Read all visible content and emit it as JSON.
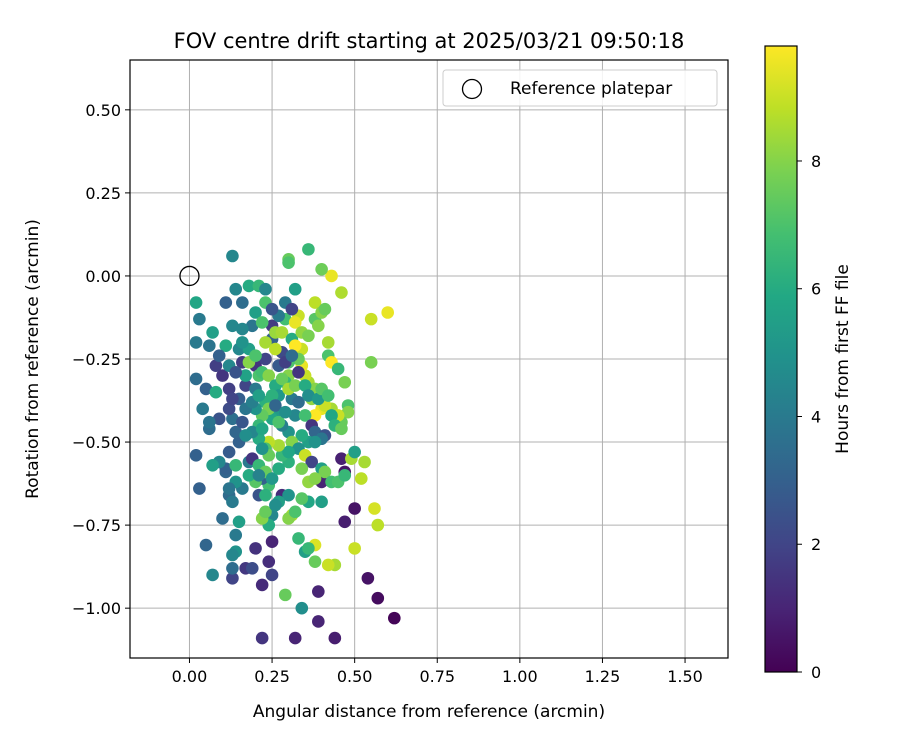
{
  "chart_data": {
    "type": "scatter",
    "title": "FOV centre drift starting at 2025/03/21 09:50:18",
    "xlabel": "Angular distance from reference (arcmin)",
    "ylabel": "Rotation from reference (arcmin)",
    "xlim": [
      -0.18,
      1.63
    ],
    "ylim": [
      -1.15,
      0.65
    ],
    "xticks": [
      "0.00",
      "0.25",
      "0.50",
      "0.75",
      "1.00",
      "1.25",
      "1.50"
    ],
    "yticks": [
      "0.50",
      "0.25",
      "0.00",
      "−0.25",
      "−0.50",
      "−0.75",
      "−1.00"
    ],
    "xtick_values": [
      0,
      0.25,
      0.5,
      0.75,
      1.0,
      1.25,
      1.5
    ],
    "ytick_values": [
      0.5,
      0.25,
      0,
      -0.25,
      -0.5,
      -0.75,
      -1.0
    ],
    "grid": true,
    "legend": {
      "placement": "top-right",
      "label": "Reference platepar",
      "marker": "open-circle"
    },
    "reference_point": {
      "x": 0.0,
      "y": 0.0
    },
    "colorbar": {
      "label": "Hours from first FF file",
      "min": 0,
      "max": 9.8,
      "ticks": [
        0,
        2,
        4,
        6,
        8
      ],
      "tick_labels": [
        "0",
        "2",
        "4",
        "6",
        "8"
      ],
      "colormap": "viridis"
    },
    "points": [
      [
        0.62,
        -1.03,
        0.1
      ],
      [
        0.57,
        -0.97,
        0.3
      ],
      [
        0.54,
        -0.91,
        0.5
      ],
      [
        0.44,
        -1.09,
        0.8
      ],
      [
        0.32,
        -1.09,
        1.0
      ],
      [
        0.22,
        -1.09,
        1.5
      ],
      [
        0.39,
        -1.04,
        1.0
      ],
      [
        0.39,
        -0.95,
        1.0
      ],
      [
        0.5,
        -0.7,
        0.5
      ],
      [
        0.47,
        -0.74,
        0.8
      ],
      [
        0.46,
        -0.55,
        0.9
      ],
      [
        0.47,
        -0.59,
        0.6
      ],
      [
        0.4,
        -0.62,
        1.0
      ],
      [
        0.28,
        -0.66,
        1.2
      ],
      [
        0.25,
        -0.8,
        1.0
      ],
      [
        0.2,
        -0.82,
        1.4
      ],
      [
        0.24,
        -0.86,
        1.3
      ],
      [
        0.22,
        -0.93,
        1.2
      ],
      [
        0.25,
        -0.9,
        2.0
      ],
      [
        0.17,
        -0.88,
        1.6
      ],
      [
        0.13,
        -0.91,
        2.0
      ],
      [
        0.19,
        -0.88,
        2.3
      ],
      [
        0.07,
        -0.9,
        4.5
      ],
      [
        0.05,
        -0.81,
        3.2
      ],
      [
        0.1,
        -0.73,
        3.5
      ],
      [
        0.03,
        -0.64,
        3.0
      ],
      [
        0.11,
        -0.59,
        3.2
      ],
      [
        0.12,
        -0.66,
        3.4
      ],
      [
        0.02,
        -0.54,
        3.0
      ],
      [
        0.06,
        -0.46,
        3.5
      ],
      [
        0.09,
        -0.43,
        2.5
      ],
      [
        0.06,
        -0.44,
        3.8
      ],
      [
        0.12,
        -0.53,
        2.8
      ],
      [
        0.15,
        -0.5,
        3.0
      ],
      [
        0.13,
        -0.43,
        3.6
      ],
      [
        0.14,
        -0.47,
        3.2
      ],
      [
        0.16,
        -0.44,
        2.6
      ],
      [
        0.12,
        -0.4,
        2.2
      ],
      [
        0.15,
        -0.37,
        2.9
      ],
      [
        0.17,
        -0.33,
        2.0
      ],
      [
        0.12,
        -0.34,
        1.8
      ],
      [
        0.1,
        -0.3,
        1.5
      ],
      [
        0.08,
        -0.27,
        1.8
      ],
      [
        0.05,
        -0.34,
        3.0
      ],
      [
        0.04,
        -0.4,
        4.0
      ],
      [
        0.02,
        -0.31,
        3.5
      ],
      [
        0.02,
        -0.2,
        4.0
      ],
      [
        0.06,
        -0.21,
        3.8
      ],
      [
        0.03,
        -0.13,
        4.0
      ],
      [
        0.02,
        -0.08,
        5.8
      ],
      [
        0.07,
        -0.17,
        5.5
      ],
      [
        0.11,
        -0.08,
        3.0
      ],
      [
        0.13,
        -0.15,
        4.5
      ],
      [
        0.14,
        -0.04,
        4.5
      ],
      [
        0.16,
        -0.08,
        3.5
      ],
      [
        0.13,
        0.06,
        4.5
      ],
      [
        0.18,
        -0.03,
        6.0
      ],
      [
        0.21,
        -0.03,
        6.5
      ],
      [
        0.23,
        -0.08,
        7.0
      ],
      [
        0.2,
        -0.11,
        5.5
      ],
      [
        0.19,
        -0.15,
        3.8
      ],
      [
        0.16,
        -0.16,
        4.5
      ],
      [
        0.15,
        -0.22,
        4.5
      ],
      [
        0.18,
        -0.22,
        5.5
      ],
      [
        0.16,
        -0.26,
        1.7
      ],
      [
        0.2,
        -0.27,
        1.5
      ],
      [
        0.23,
        -0.25,
        2.0
      ],
      [
        0.25,
        -0.19,
        3.0
      ],
      [
        0.25,
        -0.15,
        1.7
      ],
      [
        0.26,
        -0.17,
        8.3
      ],
      [
        0.28,
        -0.17,
        8.5
      ],
      [
        0.29,
        -0.13,
        6.8
      ],
      [
        0.28,
        -0.23,
        2.2
      ],
      [
        0.31,
        -0.19,
        6.0
      ],
      [
        0.33,
        -0.12,
        9.0
      ],
      [
        0.32,
        -0.14,
        9.5
      ],
      [
        0.34,
        -0.17,
        8.2
      ],
      [
        0.36,
        -0.18,
        7.8
      ],
      [
        0.38,
        -0.13,
        7.2
      ],
      [
        0.38,
        -0.08,
        8.8
      ],
      [
        0.4,
        -0.11,
        8.0
      ],
      [
        0.41,
        -0.1,
        7.5
      ],
      [
        0.43,
        0.0,
        9.5
      ],
      [
        0.4,
        0.02,
        7.6
      ],
      [
        0.36,
        0.08,
        6.5
      ],
      [
        0.3,
        0.05,
        7.5
      ],
      [
        0.3,
        0.04,
        7.0
      ],
      [
        0.32,
        -0.04,
        5.5
      ],
      [
        0.39,
        -0.15,
        8.0
      ],
      [
        0.42,
        -0.2,
        8.5
      ],
      [
        0.42,
        -0.24,
        7.0
      ],
      [
        0.43,
        -0.26,
        9.8
      ],
      [
        0.45,
        -0.28,
        6.5
      ],
      [
        0.47,
        -0.32,
        7.8
      ],
      [
        0.48,
        -0.39,
        7.0
      ],
      [
        0.46,
        -0.05,
        8.6
      ],
      [
        0.55,
        -0.13,
        9.0
      ],
      [
        0.6,
        -0.11,
        9.5
      ],
      [
        0.55,
        -0.26,
        7.8
      ],
      [
        0.48,
        -0.41,
        8.0
      ],
      [
        0.46,
        -0.44,
        7.5
      ],
      [
        0.43,
        -0.4,
        8.5
      ],
      [
        0.45,
        -0.42,
        9.0
      ],
      [
        0.44,
        -0.45,
        8.0
      ],
      [
        0.4,
        -0.4,
        9.5
      ],
      [
        0.41,
        -0.39,
        9.0
      ],
      [
        0.38,
        -0.42,
        9.8
      ],
      [
        0.37,
        -0.37,
        8.2
      ],
      [
        0.36,
        -0.32,
        8.5
      ],
      [
        0.38,
        -0.34,
        8.0
      ],
      [
        0.35,
        -0.3,
        9.0
      ],
      [
        0.34,
        -0.27,
        9.5
      ],
      [
        0.34,
        -0.22,
        9.0
      ],
      [
        0.32,
        -0.21,
        9.8
      ],
      [
        0.33,
        -0.25,
        7.5
      ],
      [
        0.3,
        -0.3,
        8.0
      ],
      [
        0.3,
        -0.26,
        7.0
      ],
      [
        0.29,
        -0.32,
        6.5
      ],
      [
        0.31,
        -0.37,
        4.0
      ],
      [
        0.33,
        -0.38,
        3.5
      ],
      [
        0.32,
        -0.42,
        4.5
      ],
      [
        0.35,
        -0.42,
        6.8
      ],
      [
        0.37,
        -0.45,
        1.5
      ],
      [
        0.38,
        -0.47,
        3.2
      ],
      [
        0.36,
        -0.5,
        5.5
      ],
      [
        0.34,
        -0.48,
        6.0
      ],
      [
        0.31,
        -0.52,
        7.0
      ],
      [
        0.3,
        -0.47,
        5.0
      ],
      [
        0.28,
        -0.45,
        4.2
      ],
      [
        0.26,
        -0.41,
        5.3
      ],
      [
        0.25,
        -0.43,
        5.8
      ],
      [
        0.23,
        -0.38,
        6.2
      ],
      [
        0.24,
        -0.4,
        7.8
      ],
      [
        0.22,
        -0.42,
        7.4
      ],
      [
        0.21,
        -0.45,
        6.5
      ],
      [
        0.2,
        -0.4,
        5.0
      ],
      [
        0.2,
        -0.34,
        4.0
      ],
      [
        0.21,
        -0.3,
        7.0
      ],
      [
        0.22,
        -0.29,
        6.8
      ],
      [
        0.24,
        -0.3,
        8.0
      ],
      [
        0.26,
        -0.33,
        6.0
      ],
      [
        0.27,
        -0.36,
        5.2
      ],
      [
        0.28,
        -0.31,
        7.5
      ],
      [
        0.3,
        -0.34,
        8.5
      ],
      [
        0.32,
        -0.33,
        7.8
      ],
      [
        0.3,
        -0.56,
        6.2
      ],
      [
        0.31,
        -0.5,
        8.0
      ],
      [
        0.33,
        -0.52,
        5.0
      ],
      [
        0.35,
        -0.54,
        9.0
      ],
      [
        0.37,
        -0.56,
        2.0
      ],
      [
        0.4,
        -0.58,
        5.5
      ],
      [
        0.41,
        -0.59,
        7.8
      ],
      [
        0.43,
        -0.62,
        6.8
      ],
      [
        0.45,
        -0.62,
        7.0
      ],
      [
        0.47,
        -0.6,
        6.5
      ],
      [
        0.49,
        -0.55,
        8.5
      ],
      [
        0.5,
        -0.53,
        5.5
      ],
      [
        0.52,
        -0.61,
        8.8
      ],
      [
        0.53,
        -0.56,
        8.5
      ],
      [
        0.56,
        -0.7,
        9.2
      ],
      [
        0.57,
        -0.75,
        8.8
      ],
      [
        0.5,
        -0.82,
        9.0
      ],
      [
        0.44,
        -0.87,
        8.5
      ],
      [
        0.42,
        -0.87,
        9.0
      ],
      [
        0.38,
        -0.86,
        7.5
      ],
      [
        0.38,
        -0.81,
        9.3
      ],
      [
        0.35,
        -0.83,
        5.5
      ],
      [
        0.36,
        -0.82,
        6.5
      ],
      [
        0.33,
        -0.79,
        6.5
      ],
      [
        0.34,
        -1.0,
        4.8
      ],
      [
        0.29,
        -0.96,
        7.5
      ],
      [
        0.31,
        -0.72,
        8.5
      ],
      [
        0.3,
        -0.73,
        8.0
      ],
      [
        0.32,
        -0.71,
        7.0
      ],
      [
        0.3,
        -0.66,
        5.0
      ],
      [
        0.27,
        -0.68,
        5.5
      ],
      [
        0.25,
        -0.72,
        4.5
      ],
      [
        0.24,
        -0.75,
        6.0
      ],
      [
        0.22,
        -0.73,
        8.0
      ],
      [
        0.23,
        -0.71,
        7.5
      ],
      [
        0.24,
        -0.63,
        6.8
      ],
      [
        0.22,
        -0.61,
        3.0
      ],
      [
        0.21,
        -0.66,
        2.5
      ],
      [
        0.2,
        -0.62,
        7.2
      ],
      [
        0.18,
        -0.6,
        6.0
      ],
      [
        0.16,
        -0.64,
        4.0
      ],
      [
        0.14,
        -0.62,
        5.0
      ],
      [
        0.13,
        -0.68,
        4.0
      ],
      [
        0.12,
        -0.64,
        3.8
      ],
      [
        0.15,
        -0.74,
        5.5
      ],
      [
        0.14,
        -0.83,
        5.0
      ],
      [
        0.14,
        -0.78,
        4.0
      ],
      [
        0.13,
        -0.84,
        4.5
      ],
      [
        0.13,
        -0.88,
        3.5
      ],
      [
        0.11,
        -0.58,
        3.0
      ],
      [
        0.09,
        -0.56,
        4.5
      ],
      [
        0.07,
        -0.57,
        5.5
      ],
      [
        0.18,
        -0.56,
        4.0
      ],
      [
        0.19,
        -0.55,
        1.5
      ],
      [
        0.21,
        -0.57,
        6.5
      ],
      [
        0.23,
        -0.59,
        7.5
      ],
      [
        0.25,
        -0.61,
        5.2
      ],
      [
        0.27,
        -0.58,
        6.0
      ],
      [
        0.28,
        -0.54,
        6.5
      ],
      [
        0.3,
        -0.53,
        5.8
      ],
      [
        0.27,
        -0.51,
        8.5
      ],
      [
        0.24,
        -0.5,
        8.8
      ],
      [
        0.23,
        -0.52,
        7.0
      ],
      [
        0.21,
        -0.49,
        6.0
      ],
      [
        0.19,
        -0.47,
        4.5
      ],
      [
        0.17,
        -0.48,
        4.8
      ],
      [
        0.17,
        -0.4,
        3.8
      ],
      [
        0.19,
        -0.38,
        4.2
      ],
      [
        0.21,
        -0.36,
        5.5
      ],
      [
        0.25,
        -0.36,
        6.2
      ],
      [
        0.26,
        -0.39,
        3.2
      ],
      [
        0.27,
        -0.27,
        2.8
      ],
      [
        0.29,
        -0.26,
        1.8
      ],
      [
        0.31,
        -0.24,
        3.5
      ],
      [
        0.33,
        -0.29,
        1.5
      ],
      [
        0.35,
        -0.33,
        6.0
      ],
      [
        0.36,
        -0.36,
        4.8
      ],
      [
        0.39,
        -0.37,
        5.2
      ],
      [
        0.4,
        -0.34,
        7.2
      ],
      [
        0.42,
        -0.36,
        6.8
      ],
      [
        0.43,
        -0.42,
        5.8
      ],
      [
        0.44,
        -0.45,
        6.2
      ],
      [
        0.46,
        -0.46,
        7.5
      ],
      [
        0.41,
        -0.48,
        2.5
      ],
      [
        0.4,
        -0.49,
        3.8
      ],
      [
        0.38,
        -0.5,
        5.0
      ],
      [
        0.34,
        -0.58,
        7.8
      ],
      [
        0.36,
        -0.62,
        8.2
      ],
      [
        0.36,
        -0.68,
        5.8
      ],
      [
        0.34,
        -0.67,
        7.2
      ],
      [
        0.4,
        -0.68,
        5.5
      ],
      [
        0.38,
        -0.61,
        8.0
      ],
      [
        0.24,
        -0.54,
        7.5
      ],
      [
        0.22,
        -0.52,
        5.0
      ],
      [
        0.14,
        -0.57,
        6.5
      ],
      [
        0.17,
        -0.3,
        5.6
      ],
      [
        0.18,
        -0.26,
        8.0
      ],
      [
        0.2,
        -0.24,
        7.0
      ],
      [
        0.23,
        -0.2,
        8.5
      ],
      [
        0.22,
        -0.14,
        7.0
      ],
      [
        0.23,
        -0.04,
        4.5
      ],
      [
        0.12,
        -0.27,
        4.5
      ],
      [
        0.11,
        -0.21,
        6.0
      ],
      [
        0.09,
        -0.24,
        3.0
      ],
      [
        0.08,
        -0.35,
        6.0
      ],
      [
        0.13,
        -0.37,
        2.0
      ],
      [
        0.16,
        -0.2,
        5.0
      ],
      [
        0.14,
        -0.29,
        2.5
      ],
      [
        0.29,
        -0.08,
        4.0
      ],
      [
        0.31,
        -0.1,
        2.0
      ],
      [
        0.27,
        -0.12,
        4.0
      ],
      [
        0.25,
        -0.1,
        2.6
      ],
      [
        0.26,
        -0.22,
        8.8
      ],
      [
        0.27,
        -0.44,
        7.0
      ],
      [
        0.29,
        -0.41,
        4.8
      ],
      [
        0.22,
        -0.46,
        5.8
      ],
      [
        0.21,
        -0.6,
        4.3
      ],
      [
        0.23,
        -0.66,
        6.2
      ],
      [
        0.26,
        -0.69,
        4.8
      ]
    ]
  }
}
